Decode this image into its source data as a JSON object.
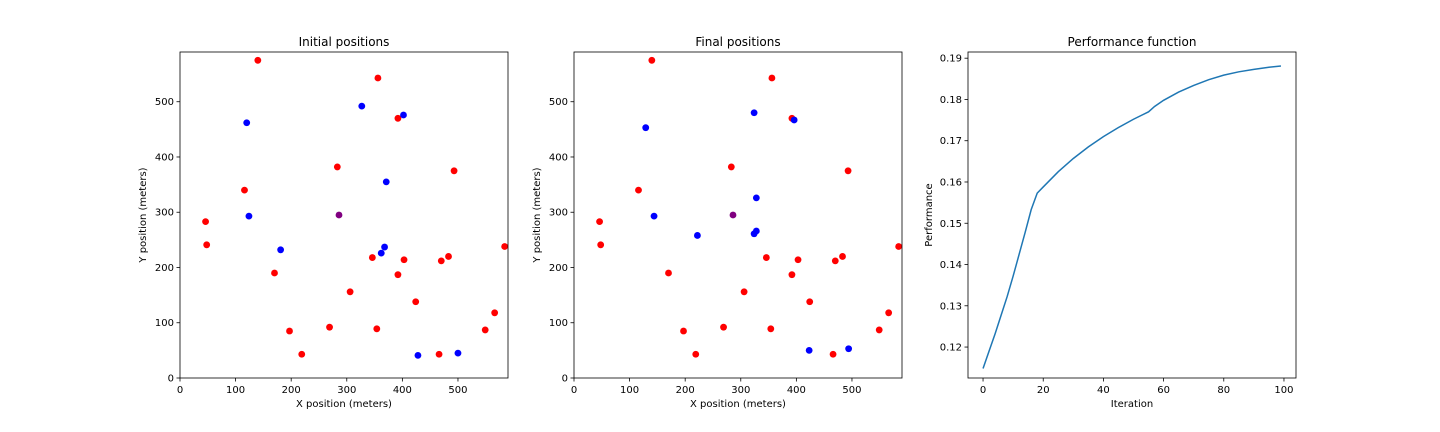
{
  "chart_data": [
    {
      "type": "scatter",
      "title": "Initial positions",
      "xlabel": "X position (meters)",
      "ylabel": "Y position (meters)",
      "xlim": [
        0,
        590
      ],
      "ylim": [
        0,
        590
      ],
      "xticks": [
        0,
        100,
        200,
        300,
        400,
        500
      ],
      "yticks": [
        0,
        100,
        200,
        300,
        400,
        500
      ],
      "grid": false,
      "series": [
        {
          "color": "#ff0000",
          "points": [
            [
              140,
              575
            ],
            [
              356,
              543
            ],
            [
              392,
              470
            ],
            [
              283,
              382
            ],
            [
              493,
              375
            ],
            [
              116,
              340
            ],
            [
              46,
              283
            ],
            [
              48,
              241
            ],
            [
              584,
              238
            ],
            [
              483,
              220
            ],
            [
              470,
              212
            ],
            [
              346,
              218
            ],
            [
              403,
              214
            ],
            [
              392,
              187
            ],
            [
              170,
              190
            ],
            [
              306,
              156
            ],
            [
              424,
              138
            ],
            [
              566,
              118
            ],
            [
              549,
              87
            ],
            [
              197,
              85
            ],
            [
              269,
              92
            ],
            [
              354,
              89
            ],
            [
              219,
              43
            ],
            [
              466,
              43
            ]
          ]
        },
        {
          "color": "#0000ff",
          "points": [
            [
              327,
              492
            ],
            [
              402,
              476
            ],
            [
              120,
              462
            ],
            [
              371,
              355
            ],
            [
              124,
              293
            ],
            [
              181,
              232
            ],
            [
              368,
              237
            ],
            [
              362,
              226
            ],
            [
              428,
              41
            ],
            [
              500,
              45
            ]
          ]
        },
        {
          "color": "#800080",
          "points": [
            [
              286,
              295
            ]
          ]
        }
      ]
    },
    {
      "type": "scatter",
      "title": "Final positions",
      "xlabel": "X position (meters)",
      "ylabel": "Y position (meters)",
      "xlim": [
        0,
        590
      ],
      "ylim": [
        0,
        590
      ],
      "xticks": [
        0,
        100,
        200,
        300,
        400,
        500
      ],
      "yticks": [
        0,
        100,
        200,
        300,
        400,
        500
      ],
      "grid": false,
      "series": [
        {
          "color": "#ff0000",
          "points": [
            [
              140,
              575
            ],
            [
              356,
              543
            ],
            [
              392,
              470
            ],
            [
              283,
              382
            ],
            [
              493,
              375
            ],
            [
              116,
              340
            ],
            [
              46,
              283
            ],
            [
              48,
              241
            ],
            [
              584,
              238
            ],
            [
              483,
              220
            ],
            [
              470,
              212
            ],
            [
              346,
              218
            ],
            [
              403,
              214
            ],
            [
              392,
              187
            ],
            [
              170,
              190
            ],
            [
              306,
              156
            ],
            [
              424,
              138
            ],
            [
              566,
              118
            ],
            [
              549,
              87
            ],
            [
              197,
              85
            ],
            [
              269,
              92
            ],
            [
              354,
              89
            ],
            [
              219,
              43
            ],
            [
              466,
              43
            ]
          ]
        },
        {
          "color": "#0000ff",
          "points": [
            [
              324,
              480
            ],
            [
              396,
              467
            ],
            [
              129,
              453
            ],
            [
              328,
              326
            ],
            [
              144,
              293
            ],
            [
              222,
              258
            ],
            [
              328,
              266
            ],
            [
              324,
              261
            ],
            [
              423,
              50
            ],
            [
              494,
              53
            ]
          ]
        },
        {
          "color": "#800080",
          "points": [
            [
              286,
              295
            ]
          ]
        }
      ]
    },
    {
      "type": "line",
      "title": "Performance function",
      "xlabel": "Iteration",
      "ylabel": "Performance",
      "xlim": [
        -5,
        104
      ],
      "ylim": [
        0.1125,
        0.1915
      ],
      "xticks": [
        0,
        20,
        40,
        60,
        80,
        100
      ],
      "yticks": [
        0.12,
        0.13,
        0.14,
        0.15,
        0.16,
        0.17,
        0.18,
        0.19
      ],
      "grid": false,
      "series": [
        {
          "color": "#1f77b4",
          "x": [
            0,
            2,
            4,
            6,
            8,
            10,
            12,
            14,
            16,
            18,
            20,
            25,
            30,
            35,
            40,
            45,
            50,
            55,
            57,
            60,
            65,
            70,
            75,
            80,
            85,
            90,
            95,
            99
          ],
          "y": [
            0.1148,
            0.119,
            0.1232,
            0.1277,
            0.1322,
            0.1372,
            0.1425,
            0.1478,
            0.1533,
            0.1573,
            0.1588,
            0.1625,
            0.1657,
            0.1685,
            0.171,
            0.1732,
            0.1752,
            0.177,
            0.1783,
            0.1798,
            0.1818,
            0.1834,
            0.1848,
            0.1859,
            0.1867,
            0.1873,
            0.1878,
            0.1881
          ]
        }
      ]
    }
  ]
}
